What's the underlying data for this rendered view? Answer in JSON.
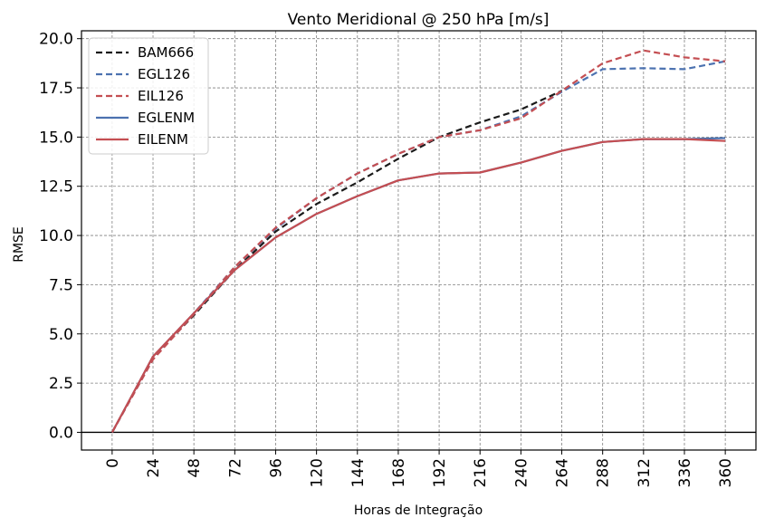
{
  "chart_data": {
    "type": "line",
    "title": "Vento Meridional @ 250 hPa [m/s]",
    "xlabel": "Horas de Integração",
    "ylabel": "RMSE",
    "x": [
      0,
      24,
      48,
      72,
      96,
      120,
      144,
      168,
      192,
      216,
      240,
      264,
      288,
      312,
      336,
      360
    ],
    "xticks": [
      "0",
      "24",
      "48",
      "72",
      "96",
      "120",
      "144",
      "168",
      "192",
      "216",
      "240",
      "264",
      "288",
      "312",
      "336",
      "360"
    ],
    "yticks": [
      "0.0",
      "2.5",
      "5.0",
      "7.5",
      "10.0",
      "12.5",
      "15.0",
      "17.5",
      "20.0"
    ],
    "xlim": [
      -18,
      378
    ],
    "ylim": [
      -0.9,
      20.4
    ],
    "grid": true,
    "legend": "top-left",
    "series": [
      {
        "name": "BAM666",
        "color": "#1a1a1a",
        "dash": "dashed",
        "values": [
          0.0,
          3.8,
          5.95,
          8.25,
          10.2,
          11.6,
          12.7,
          13.9,
          15.0,
          15.75,
          16.4,
          17.35,
          null,
          null,
          null,
          null
        ]
      },
      {
        "name": "EGL126",
        "color": "#4c72b0",
        "dash": "dashed",
        "values": [
          0.0,
          3.75,
          6.05,
          8.4,
          10.35,
          11.9,
          13.15,
          14.15,
          15.0,
          15.35,
          16.05,
          17.3,
          18.45,
          18.5,
          18.45,
          18.85
        ]
      },
      {
        "name": "EIL126",
        "color": "#c44e52",
        "dash": "dashed",
        "values": [
          0.0,
          3.7,
          6.0,
          8.4,
          10.4,
          11.9,
          13.15,
          14.15,
          15.0,
          15.35,
          15.95,
          17.35,
          18.75,
          19.4,
          19.05,
          18.85
        ]
      },
      {
        "name": "EGLENM",
        "color": "#4c72b0",
        "dash": "solid",
        "values": [
          0.0,
          3.85,
          6.05,
          8.25,
          9.9,
          11.1,
          12.0,
          12.8,
          13.15,
          13.2,
          13.7,
          14.3,
          14.75,
          14.9,
          14.9,
          14.95
        ]
      },
      {
        "name": "EILENM",
        "color": "#c44e52",
        "dash": "solid",
        "values": [
          0.0,
          3.85,
          6.05,
          8.25,
          9.9,
          11.1,
          12.0,
          12.8,
          13.15,
          13.2,
          13.7,
          14.3,
          14.75,
          14.9,
          14.9,
          14.8
        ]
      }
    ]
  }
}
